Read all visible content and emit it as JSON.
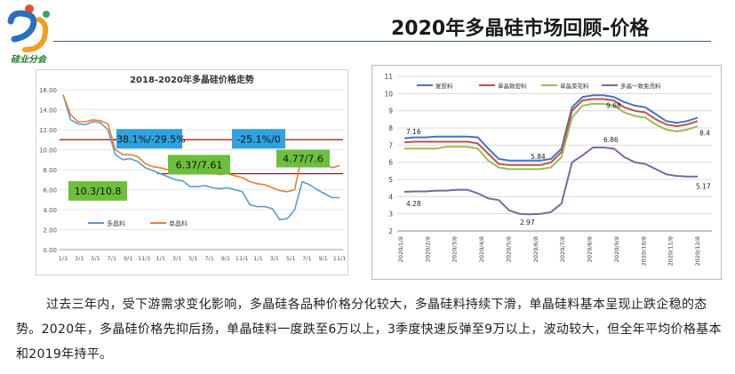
{
  "logo": {
    "caption": "硅业分会"
  },
  "slide": {
    "title": "2020年多晶硅市场回顾-价格"
  },
  "chart_data": [
    {
      "type": "line",
      "title": "2018-2020年多晶硅价格走势",
      "xlabel": "",
      "ylabel": "",
      "ylim": [
        0,
        16
      ],
      "yticks": [
        "0.00",
        "2.00",
        "4.00",
        "6.00",
        "8.00",
        "10.00",
        "12.00",
        "14.00",
        "16.00"
      ],
      "x_tick_labels": [
        "1/1",
        "3/1",
        "5/1",
        "7/1",
        "9/1",
        "11/1",
        "1/1",
        "3/1",
        "5/1",
        "7/1",
        "9/1",
        "11/1",
        "1/1",
        "3/1",
        "5/1",
        "7/1",
        "9/1",
        "11/1"
      ],
      "series": [
        {
          "name": "多晶料",
          "color": "#5b9bd5",
          "values": [
            15.5,
            13.0,
            12.6,
            12.5,
            12.8,
            12.7,
            12.0,
            9.5,
            9.0,
            9.1,
            8.8,
            8.2,
            7.9,
            7.6,
            7.3,
            7.0,
            6.9,
            6.3,
            6.3,
            6.4,
            6.2,
            6.1,
            6.2,
            6.0,
            5.8,
            4.5,
            4.3,
            4.3,
            4.1,
            3.0,
            3.1,
            4.0,
            6.8,
            6.5,
            6.0,
            5.6,
            5.2,
            5.2
          ]
        },
        {
          "name": "单晶料",
          "color": "#ed7d31",
          "values": [
            15.5,
            13.5,
            12.8,
            12.8,
            13.0,
            12.9,
            12.6,
            10.0,
            9.5,
            9.5,
            9.3,
            8.6,
            8.3,
            8.2,
            8.0,
            7.8,
            7.8,
            7.7,
            7.6,
            7.6,
            7.6,
            7.5,
            7.6,
            7.4,
            7.2,
            6.8,
            6.6,
            6.5,
            6.2,
            5.9,
            5.8,
            6.0,
            9.6,
            9.4,
            8.8,
            8.5,
            8.2,
            8.4
          ]
        }
      ],
      "reference_lines": [
        {
          "value": 11.0,
          "color": "#c00000"
        },
        {
          "value": 7.6,
          "color": "#c00000"
        }
      ],
      "annotations": [
        {
          "text": "-38.1%/-29.5%",
          "color": "#2ea3e0"
        },
        {
          "text": "-25.1%/0",
          "color": "#2ea3e0"
        },
        {
          "text": "10.3/10.8",
          "color": "#6cbf3c"
        },
        {
          "text": "6.37/7.61",
          "color": "#6cbf3c"
        },
        {
          "text": "4.77/7.6",
          "color": "#6cbf3c"
        }
      ]
    },
    {
      "type": "line",
      "title": "",
      "ylim": [
        2,
        11
      ],
      "yticks": [
        "2",
        "3",
        "4",
        "5",
        "6",
        "7",
        "8",
        "9",
        "10",
        "11"
      ],
      "x_tick_labels": [
        "2020/1/8",
        "2020/2/8",
        "2020/3/8",
        "2020/4/8",
        "2020/5/8",
        "2020/6/8",
        "2020/7/8",
        "2020/8/8",
        "2020/9/8",
        "2020/10/8",
        "2020/11/8",
        "2020/12/8"
      ],
      "series": [
        {
          "name": "复投料",
          "color": "#4472c4",
          "values": [
            7.4,
            7.45,
            7.45,
            7.5,
            7.5,
            7.5,
            7.5,
            7.45,
            6.8,
            6.2,
            6.1,
            6.1,
            6.1,
            6.1,
            6.2,
            6.8,
            9.2,
            9.8,
            9.9,
            9.9,
            9.8,
            9.5,
            9.3,
            9.2,
            8.8,
            8.4,
            8.3,
            8.4,
            8.6
          ]
        },
        {
          "name": "单晶致密料",
          "color": "#c0504d",
          "values": [
            7.16,
            7.2,
            7.2,
            7.2,
            7.2,
            7.2,
            7.2,
            7.1,
            6.5,
            5.9,
            5.84,
            5.84,
            5.84,
            5.84,
            6.0,
            6.6,
            9.0,
            9.6,
            9.68,
            9.68,
            9.6,
            9.2,
            9.0,
            8.9,
            8.5,
            8.2,
            8.1,
            8.2,
            8.4
          ]
        },
        {
          "name": "单晶菜花料",
          "color": "#9bbb59",
          "values": [
            6.8,
            6.8,
            6.8,
            6.8,
            6.9,
            6.9,
            6.9,
            6.8,
            6.1,
            5.7,
            5.6,
            5.6,
            5.6,
            5.6,
            5.7,
            6.3,
            8.6,
            9.3,
            9.4,
            9.4,
            9.3,
            8.9,
            8.7,
            8.6,
            8.2,
            7.9,
            7.8,
            7.9,
            8.1
          ]
        },
        {
          "name": "多晶一致免洗料",
          "color": "#8064a2",
          "values": [
            4.28,
            4.3,
            4.3,
            4.35,
            4.35,
            4.4,
            4.4,
            4.2,
            3.9,
            3.8,
            3.2,
            3.0,
            2.97,
            3.0,
            3.1,
            3.6,
            6.0,
            6.4,
            6.86,
            6.86,
            6.8,
            6.3,
            6.0,
            5.9,
            5.6,
            5.3,
            5.2,
            5.17,
            5.17
          ]
        }
      ],
      "data_labels": [
        "7.16",
        "5.84",
        "9.68",
        "8.4",
        "6.86",
        "4.28",
        "2.97",
        "5.17"
      ]
    }
  ],
  "body_text": "过去三年内，受下游需求变化影响，多晶硅各品种价格分化较大，多晶硅料持续下滑，单晶硅料基本呈现止跌企稳的态势。2020年，多晶硅价格先抑后扬，单晶硅料一度跌至6万以上，3季度快速反弹至9万以上，波动较大，但全年平均价格基本和2019年持平。"
}
